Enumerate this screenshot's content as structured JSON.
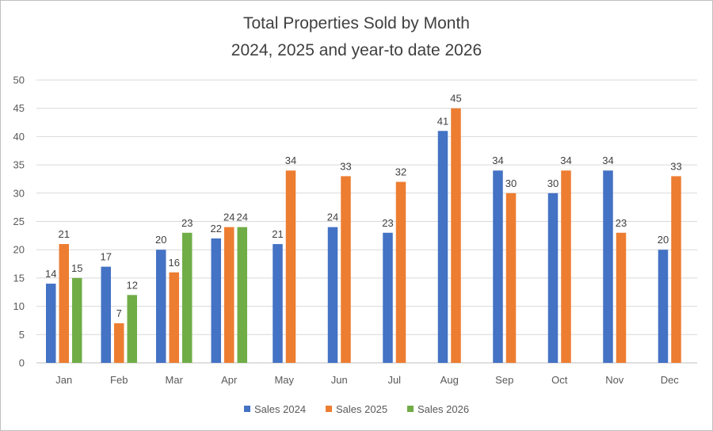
{
  "chart_data": {
    "type": "bar",
    "title": [
      "Total Properties Sold by Month",
      "2024, 2025 and year-to date 2026"
    ],
    "xlabel": "",
    "ylabel": "",
    "ylim": [
      0,
      50
    ],
    "yticks": [
      "0",
      "5",
      "10",
      "15",
      "20",
      "25",
      "30",
      "35",
      "40",
      "45",
      "50"
    ],
    "grid": true,
    "legend_position": "bottom",
    "categories": [
      "Jan",
      "Feb",
      "Mar",
      "Apr",
      "May",
      "Jun",
      "Jul",
      "Aug",
      "Sep",
      "Oct",
      "Nov",
      "Dec"
    ],
    "series": [
      {
        "name": "Sales 2024",
        "color": "#4472c4",
        "values": [
          14,
          17,
          20,
          22,
          21,
          24,
          23,
          41,
          34,
          30,
          34,
          20
        ]
      },
      {
        "name": "Sales 2025",
        "color": "#ed7d31",
        "values": [
          21,
          7,
          16,
          24,
          34,
          33,
          32,
          45,
          30,
          34,
          23,
          33
        ]
      },
      {
        "name": "Sales 2026",
        "color": "#70ad47",
        "values": [
          15,
          12,
          23,
          24,
          null,
          null,
          null,
          null,
          null,
          null,
          null,
          null
        ]
      }
    ]
  }
}
